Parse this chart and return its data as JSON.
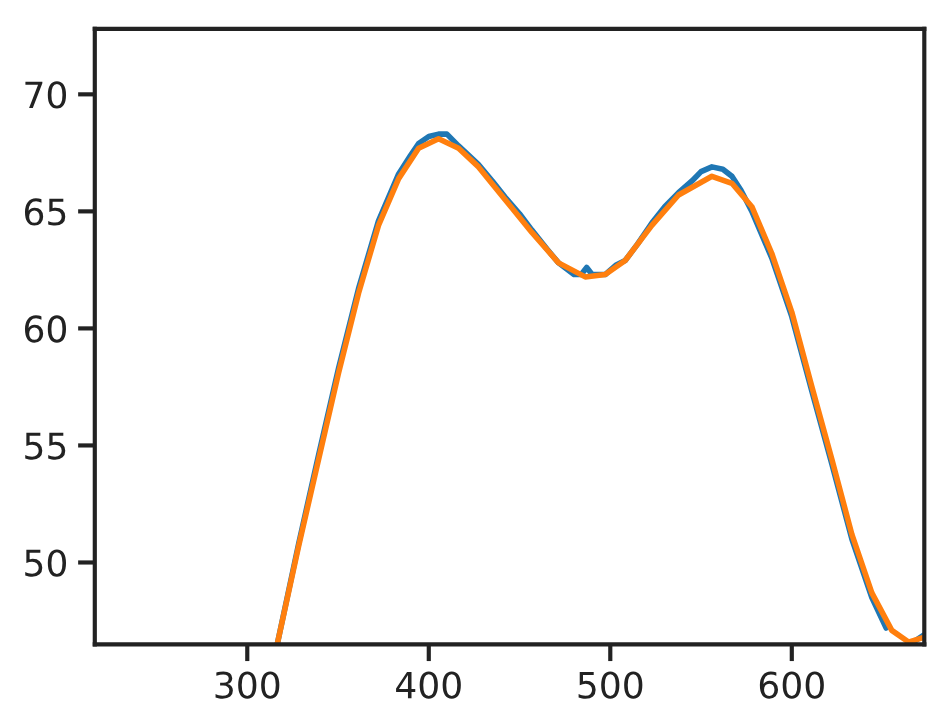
{
  "chart_data": {
    "type": "line",
    "xlim": [
      216,
      673
    ],
    "ylim": [
      46.5,
      72.8
    ],
    "xticks": [
      300,
      400,
      500,
      600
    ],
    "yticks": [
      50,
      55,
      60,
      65,
      70
    ],
    "grid": false,
    "legend": false,
    "marker": "none",
    "line_style": "solid",
    "series": [
      {
        "color": "#1f77b4",
        "x": [
          316.5,
          328.3,
          339.3,
          350.3,
          361.3,
          372.3,
          383.4,
          390,
          394.4,
          400,
          405.4,
          410,
          416.4,
          422,
          427.4,
          435,
          442.1,
          450,
          456.8,
          465,
          471.5,
          480,
          484,
          487,
          490,
          497.2,
          503,
          508.2,
          515,
          522.9,
          530,
          537.6,
          545,
          550,
          556.0,
          562,
          567.0,
          572,
          578.0,
          589.0,
          600.0,
          611.1,
          622.1,
          633.1,
          644.1,
          652,
          658,
          667,
          672.7
        ],
        "values": [
          46.5,
          50.8,
          54.6,
          58.3,
          61.7,
          64.6,
          66.6,
          67.4,
          67.9,
          68.2,
          68.3,
          68.3,
          67.8,
          67.4,
          67.0,
          66.3,
          65.6,
          64.9,
          64.2,
          63.4,
          62.8,
          62.3,
          62.3,
          62.6,
          62.3,
          62.3,
          62.7,
          62.9,
          63.6,
          64.5,
          65.2,
          65.8,
          66.3,
          66.7,
          66.9,
          66.8,
          66.5,
          65.9,
          65.0,
          63.0,
          60.5,
          57.3,
          54.2,
          51.0,
          48.5,
          47.2,
          null,
          46.6,
          46.9
        ]
      },
      {
        "color": "#ff7f0e",
        "x": [
          316.5,
          328.3,
          339.3,
          350.3,
          361.3,
          372.3,
          383.4,
          394.4,
          405.4,
          416.4,
          427.4,
          442.1,
          456.8,
          471.5,
          486.2,
          497.2,
          508.2,
          522.9,
          537.6,
          556.0,
          567.0,
          578.0,
          589.0,
          600.0,
          611.1,
          622.1,
          633.1,
          644.1,
          655.1,
          664.3,
          672.7
        ],
        "values": [
          46.5,
          50.7,
          54.4,
          58.1,
          61.5,
          64.4,
          66.4,
          67.7,
          68.1,
          67.7,
          66.9,
          65.5,
          64.1,
          62.8,
          62.2,
          62.3,
          62.9,
          64.4,
          65.7,
          66.5,
          66.2,
          65.2,
          63.2,
          60.7,
          57.5,
          54.4,
          51.2,
          48.7,
          47.1,
          46.6,
          46.8
        ]
      }
    ]
  }
}
